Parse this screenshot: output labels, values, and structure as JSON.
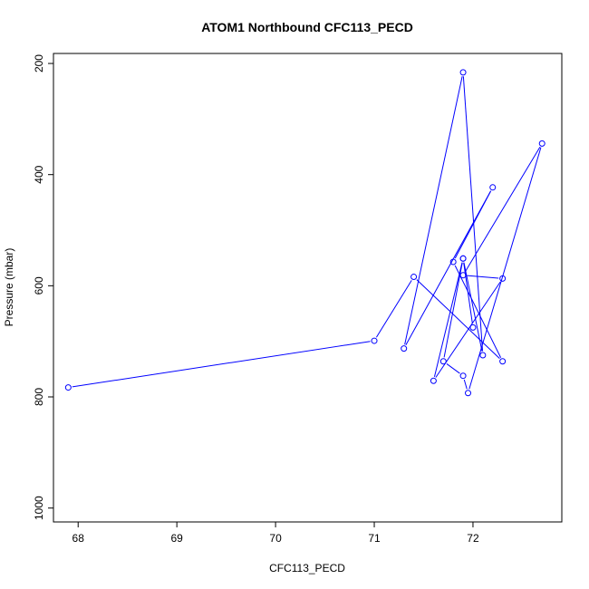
{
  "chart_data": {
    "type": "line",
    "title": "ATOM1 Northbound CFC113_PECD",
    "xlabel": "CFC113_PECD",
    "ylabel": "Pressure (mbar)",
    "xlim": [
      67.75,
      72.9
    ],
    "ylim": [
      1025,
      182
    ],
    "y_reversed": true,
    "x_ticks": [
      "68",
      "69",
      "70",
      "71",
      "72"
    ],
    "y_ticks": [
      "200",
      "400",
      "600",
      "800",
      "1000"
    ],
    "series_color": "#0000ff",
    "point_marker": "open-circle",
    "x": [
      67.9,
      71.0,
      71.4,
      72.3,
      71.8,
      72.2,
      71.3,
      71.9,
      72.1,
      71.9,
      71.6,
      72.3,
      71.9,
      72.7,
      71.95,
      71.9,
      71.7,
      71.9,
      72.0
    ],
    "y": [
      783,
      699,
      584,
      736,
      557,
      423,
      713,
      216,
      725,
      551,
      771,
      587,
      581,
      344,
      793,
      762,
      736,
      551,
      675
    ],
    "grid": false,
    "legend": "none"
  }
}
